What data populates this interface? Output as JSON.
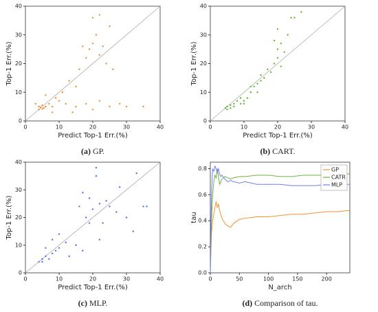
{
  "chart_data": [
    {
      "type": "scatter",
      "caption_label": "(a)",
      "caption": "GP.",
      "xlabel": "Predict Top-1 Err.(%)",
      "ylabel": "Top-1 Err.(%)",
      "color": "#f28c28",
      "x": [
        4,
        4.5,
        5,
        5,
        6,
        4,
        5.5,
        7,
        8,
        10,
        12,
        15,
        18,
        20,
        22,
        25,
        28,
        30,
        35,
        9,
        6,
        13,
        16,
        18,
        19,
        20,
        21,
        22,
        23,
        24,
        25,
        22,
        20,
        17,
        15,
        11,
        3,
        26,
        14,
        8
      ],
      "values": [
        4,
        4.8,
        4.2,
        5.5,
        5,
        5,
        4.5,
        6,
        5,
        7,
        6,
        5,
        6,
        4,
        7,
        5,
        6,
        5,
        5,
        8,
        9,
        14,
        18,
        22,
        25,
        27,
        30,
        23,
        26,
        20,
        33,
        37,
        36,
        26,
        12,
        10,
        6,
        18,
        3,
        3
      ],
      "xlim": [
        0,
        40
      ],
      "ylim": [
        0,
        40
      ],
      "xticks": [
        0,
        10,
        20,
        30,
        40
      ],
      "yticks": [
        0,
        10,
        20,
        30,
        40
      ]
    },
    {
      "type": "scatter",
      "caption_label": "(b)",
      "caption": "CART.",
      "xlabel": "Predict Top-1 Err.(%)",
      "ylabel": "Top-1 Err.(%)",
      "color": "#5cb82a",
      "x": [
        5,
        5,
        6,
        7,
        8,
        9,
        10,
        11,
        12,
        13,
        14,
        15,
        16,
        17,
        18,
        19,
        20,
        20,
        21,
        21,
        22,
        23,
        24,
        25,
        27,
        19,
        20,
        15,
        6,
        4.5,
        7,
        9,
        12,
        10,
        14
      ],
      "values": [
        4,
        5,
        5.5,
        6,
        7,
        6,
        7,
        8,
        10,
        12,
        13,
        14,
        15,
        18,
        17,
        20,
        22,
        25,
        27,
        19,
        24,
        30,
        36,
        36,
        38,
        28,
        32,
        16,
        4.5,
        4.5,
        5,
        8,
        12,
        6,
        10
      ],
      "xlim": [
        0,
        40
      ],
      "ylim": [
        0,
        40
      ],
      "xticks": [
        0,
        10,
        20,
        30,
        40
      ],
      "yticks": [
        0,
        10,
        20,
        30,
        40
      ]
    },
    {
      "type": "scatter",
      "caption_label": "(c)",
      "caption": "MLP.",
      "xlabel": "Predict Top-1 Err.(%)",
      "ylabel": "Top-1 Err.(%)",
      "color": "#4f6bff",
      "x": [
        4,
        5,
        5,
        6,
        7,
        8,
        9,
        6,
        10,
        12,
        13,
        15,
        16,
        17,
        18,
        19,
        20,
        21,
        22,
        23,
        24,
        25,
        27,
        28,
        30,
        32,
        33,
        35,
        36,
        17,
        22,
        19,
        21,
        10,
        8
      ],
      "values": [
        4,
        5,
        4,
        6,
        5,
        7,
        8,
        9,
        9,
        11,
        6,
        10,
        24,
        29,
        20,
        27,
        23,
        35,
        25,
        18,
        26,
        24,
        22,
        31,
        20,
        15,
        36,
        24,
        24,
        8,
        12,
        18,
        38,
        14,
        12
      ],
      "xlim": [
        0,
        40
      ],
      "ylim": [
        0,
        40
      ],
      "xticks": [
        0,
        10,
        20,
        30,
        40
      ],
      "yticks": [
        0,
        10,
        20,
        30,
        40
      ]
    },
    {
      "type": "line",
      "caption_label": "(d)",
      "caption": "Comparison of tau.",
      "xlabel": "N_arch",
      "ylabel": "tau",
      "legend": "upper right",
      "x": [
        0,
        2,
        4,
        6,
        8,
        10,
        12,
        14,
        16,
        18,
        20,
        25,
        30,
        35,
        40,
        50,
        60,
        80,
        100,
        120,
        140,
        160,
        180,
        200,
        220,
        240
      ],
      "series": [
        {
          "name": "GP",
          "color": "#f5922b",
          "values": [
            0,
            0.3,
            0.4,
            0.45,
            0.5,
            0.55,
            0.5,
            0.53,
            0.48,
            0.45,
            0.42,
            0.38,
            0.36,
            0.35,
            0.38,
            0.41,
            0.42,
            0.43,
            0.43,
            0.44,
            0.45,
            0.45,
            0.46,
            0.47,
            0.47,
            0.48
          ]
        },
        {
          "name": "CATR",
          "color": "#6db33f",
          "values": [
            0,
            0.4,
            0.6,
            0.7,
            0.75,
            0.73,
            0.8,
            0.74,
            0.68,
            0.7,
            0.72,
            0.74,
            0.73,
            0.72,
            0.73,
            0.74,
            0.74,
            0.75,
            0.75,
            0.74,
            0.74,
            0.75,
            0.75,
            0.75,
            0.76,
            0.76
          ]
        },
        {
          "name": "MLP",
          "color": "#6f7ff5",
          "values": [
            0,
            0.6,
            0.8,
            0.78,
            0.82,
            0.8,
            0.77,
            0.8,
            0.76,
            0.74,
            0.75,
            0.72,
            0.7,
            0.71,
            0.7,
            0.69,
            0.7,
            0.68,
            0.68,
            0.68,
            0.67,
            0.67,
            0.67,
            0.68,
            0.68,
            0.68
          ]
        }
      ],
      "xlim": [
        0,
        240
      ],
      "ylim": [
        0,
        0.85
      ],
      "xticks": [
        0,
        50,
        100,
        150,
        200
      ],
      "yticks": [
        {
          "value": 0,
          "label": "0.0"
        },
        {
          "value": 0.2,
          "label": "0.2"
        },
        {
          "value": 0.4,
          "label": "0.4"
        },
        {
          "value": 0.6,
          "label": "0.6"
        },
        {
          "value": 0.8,
          "label": "0.8"
        }
      ]
    }
  ]
}
